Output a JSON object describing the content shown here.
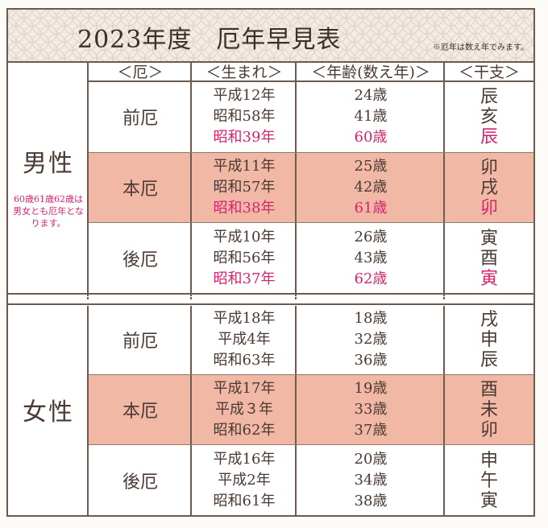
{
  "header": {
    "title": "2023年度",
    "title_main": "厄年早見表",
    "note": "※厄年は数え年でみます。"
  },
  "columns": [
    "＜厄＞",
    "＜生まれ＞",
    "＜年齢(数え年)＞",
    "＜干支＞"
  ],
  "colors": {
    "highlight_row": "#f1b8a6",
    "accent_text": "#d6246e",
    "rule": "#6b5a50"
  },
  "male": {
    "label": "男性",
    "note": "60歳61歳62歳は男女とも厄年となります。",
    "rows": [
      {
        "yaku": "前厄",
        "born": [
          "平成12年",
          "昭和58年",
          "昭和39年"
        ],
        "age": [
          "24歳",
          "41歳",
          "60歳"
        ],
        "eto": [
          "辰",
          "亥",
          "辰"
        ]
      },
      {
        "yaku": "本厄",
        "born": [
          "平成11年",
          "昭和57年",
          "昭和38年"
        ],
        "age": [
          "25歳",
          "42歳",
          "61歳"
        ],
        "eto": [
          "卯",
          "戌",
          "卯"
        ]
      },
      {
        "yaku": "後厄",
        "born": [
          "平成10年",
          "昭和56年",
          "昭和37年"
        ],
        "age": [
          "26歳",
          "43歳",
          "62歳"
        ],
        "eto": [
          "寅",
          "酉",
          "寅"
        ]
      }
    ]
  },
  "female": {
    "label": "女性",
    "rows": [
      {
        "yaku": "前厄",
        "born": [
          "平成18年",
          "平成4年",
          "昭和63年"
        ],
        "age": [
          "18歳",
          "32歳",
          "36歳"
        ],
        "eto": [
          "戌",
          "申",
          "辰"
        ]
      },
      {
        "yaku": "本厄",
        "born": [
          "平成17年",
          "平成３年",
          "昭和62年"
        ],
        "age": [
          "19歳",
          "33歳",
          "37歳"
        ],
        "eto": [
          "酉",
          "未",
          "卯"
        ]
      },
      {
        "yaku": "後厄",
        "born": [
          "平成16年",
          "平成2年",
          "昭和61年"
        ],
        "age": [
          "20歳",
          "34歳",
          "38歳"
        ],
        "eto": [
          "申",
          "午",
          "寅"
        ]
      }
    ]
  }
}
